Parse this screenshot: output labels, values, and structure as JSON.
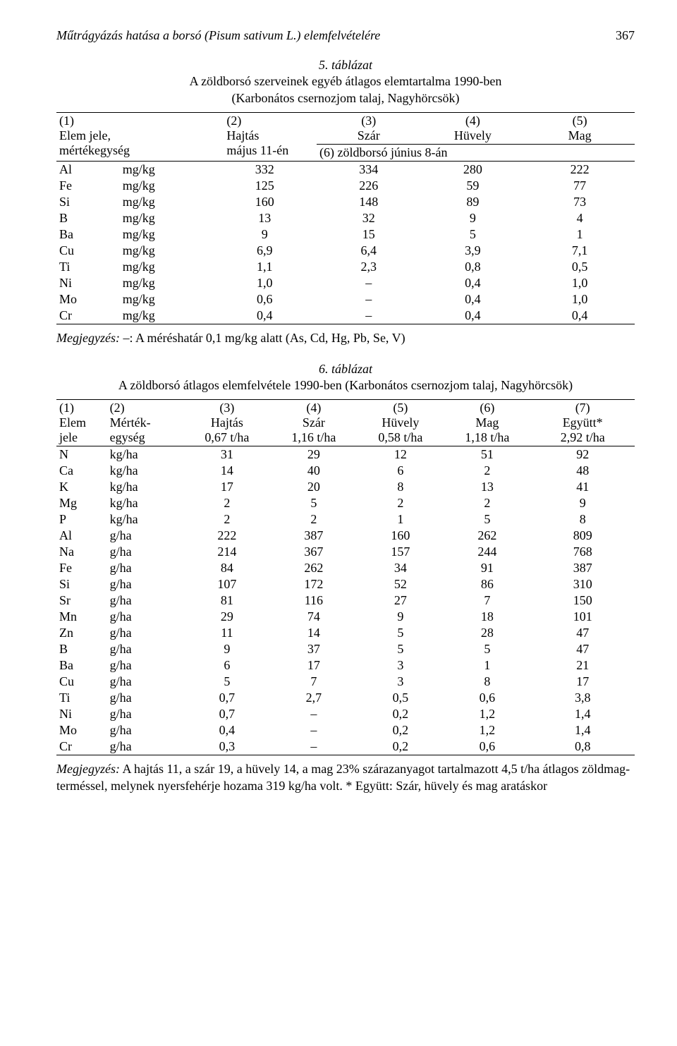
{
  "header": {
    "title": "Műtrágyázás hatása a borsó (Pisum sativum L.) elemfelvételére",
    "pagenum": "367"
  },
  "table5": {
    "caption_num": "5. táblázat",
    "caption_line1": "A zöldborsó szerveinek egyéb átlagos elemtartalma 1990-ben",
    "caption_line2": "(Karbonátos csernozjom talaj, Nagyhörcsök)",
    "hdr": {
      "c1": "(1)",
      "c1b": "Elem jele,",
      "c1c": "mértékegység",
      "c2": "(2)",
      "c2b": "Hajtás",
      "c2c": "május 11-én",
      "c3": "(3)",
      "c3b": "Szár",
      "c4": "(4)",
      "c4b": "Hüvely",
      "c5": "(5)",
      "c5b": "Mag",
      "sub": "(6) zöldborsó június 8-án"
    },
    "rows": [
      [
        "Al",
        "mg/kg",
        "332",
        "334",
        "280",
        "222"
      ],
      [
        "Fe",
        "mg/kg",
        "125",
        "226",
        "59",
        "77"
      ],
      [
        "Si",
        "mg/kg",
        "160",
        "148",
        "89",
        "73"
      ],
      [
        "B",
        "mg/kg",
        "13",
        "32",
        "9",
        "4"
      ],
      [
        "Ba",
        "mg/kg",
        "9",
        "15",
        "5",
        "1"
      ],
      [
        "Cu",
        "mg/kg",
        "6,9",
        "6,4",
        "3,9",
        "7,1"
      ],
      [
        "Ti",
        "mg/kg",
        "1,1",
        "2,3",
        "0,8",
        "0,5"
      ],
      [
        "Ni",
        "mg/kg",
        "1,0",
        "–",
        "0,4",
        "1,0"
      ],
      [
        "Mo",
        "mg/kg",
        "0,6",
        "–",
        "0,4",
        "1,0"
      ],
      [
        "Cr",
        "mg/kg",
        "0,4",
        "–",
        "0,4",
        "0,4"
      ]
    ],
    "note_label": "Megjegyzés:",
    "note_text": "–: A méréshatár 0,1 mg/kg alatt (As, Cd, Hg, Pb, Se, V)"
  },
  "table6": {
    "caption_num": "6. táblázat",
    "caption_line1": "A zöldborsó átlagos elemfelvétele 1990-ben (Karbonátos csernozjom talaj, Nagyhörcsök)",
    "hdr": {
      "c1": "(1)",
      "c1b": "Elem",
      "c1c": "jele",
      "c2": "(2)",
      "c2b": "Mérték-",
      "c2c": "egység",
      "c3": "(3)",
      "c3b": "Hajtás",
      "c3c": "0,67 t/ha",
      "c4": "(4)",
      "c4b": "Szár",
      "c4c": "1,16 t/ha",
      "c5": "(5)",
      "c5b": "Hüvely",
      "c5c": "0,58 t/ha",
      "c6": "(6)",
      "c6b": "Mag",
      "c6c": "1,18 t/ha",
      "c7": "(7)",
      "c7b": "Együtt*",
      "c7c": "2,92 t/ha"
    },
    "rows": [
      [
        "N",
        "kg/ha",
        "31",
        "29",
        "12",
        "51",
        "92"
      ],
      [
        "Ca",
        "kg/ha",
        "14",
        "40",
        "6",
        "2",
        "48"
      ],
      [
        "K",
        "kg/ha",
        "17",
        "20",
        "8",
        "13",
        "41"
      ],
      [
        "Mg",
        "kg/ha",
        "2",
        "5",
        "2",
        "2",
        "9"
      ],
      [
        "P",
        "kg/ha",
        "2",
        "2",
        "1",
        "5",
        "8"
      ],
      [
        "Al",
        "g/ha",
        "222",
        "387",
        "160",
        "262",
        "809"
      ],
      [
        "Na",
        "g/ha",
        "214",
        "367",
        "157",
        "244",
        "768"
      ],
      [
        "Fe",
        "g/ha",
        "84",
        "262",
        "34",
        "91",
        "387"
      ],
      [
        "Si",
        "g/ha",
        "107",
        "172",
        "52",
        "86",
        "310"
      ],
      [
        "Sr",
        "g/ha",
        "81",
        "116",
        "27",
        "7",
        "150"
      ],
      [
        "Mn",
        "g/ha",
        "29",
        "74",
        "9",
        "18",
        "101"
      ],
      [
        "Zn",
        "g/ha",
        "11",
        "14",
        "5",
        "28",
        "47"
      ],
      [
        "B",
        "g/ha",
        "9",
        "37",
        "5",
        "5",
        "47"
      ],
      [
        "Ba",
        "g/ha",
        "6",
        "17",
        "3",
        "1",
        "21"
      ],
      [
        "Cu",
        "g/ha",
        "5",
        "7",
        "3",
        "8",
        "17"
      ],
      [
        "Ti",
        "g/ha",
        "0,7",
        "2,7",
        "0,5",
        "0,6",
        "3,8"
      ],
      [
        "Ni",
        "g/ha",
        "0,7",
        "–",
        "0,2",
        "1,2",
        "1,4"
      ],
      [
        "Mo",
        "g/ha",
        "0,4",
        "–",
        "0,2",
        "1,2",
        "1,4"
      ],
      [
        "Cr",
        "g/ha",
        "0,3",
        "–",
        "0,2",
        "0,6",
        "0,8"
      ]
    ],
    "note_label": "Megjegyzés:",
    "note_text": "A hajtás 11, a szár 19, a hüvely 14, a mag 23% szárazanyagot tartalmazott 4,5 t/ha átlagos zöldmag-terméssel, melynek nyersfehérje hozama 319 kg/ha volt. * Együtt: Szár, hüvely és mag aratáskor"
  }
}
